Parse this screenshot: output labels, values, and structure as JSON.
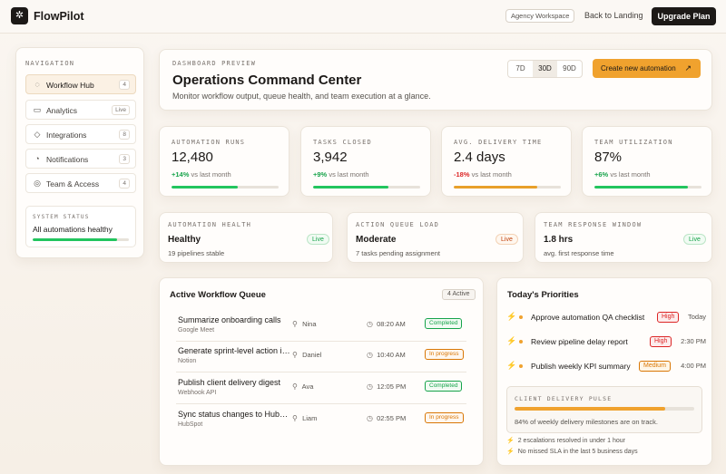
{
  "app": {
    "logo_glyph": "✲",
    "name": "FlowPilot",
    "workspace": "Agency Workspace",
    "back_label": "Back to Landing",
    "upgrade_label": "Upgrade Plan"
  },
  "sidebar": {
    "title": "NAVIGATION",
    "items": [
      {
        "label": "Workflow Hub",
        "badge": "4",
        "icon": "◌",
        "active": true
      },
      {
        "label": "Analytics",
        "badge": "Live",
        "icon": "▭"
      },
      {
        "label": "Integrations",
        "badge": "8",
        "icon": "◇"
      },
      {
        "label": "Notifications",
        "badge": "3",
        "icon": "◔"
      },
      {
        "label": "Team & Access",
        "badge": "4",
        "icon": "◎"
      }
    ],
    "status": {
      "title": "SYSTEM STATUS",
      "text": "All automations healthy",
      "progress": 0.88,
      "color": "#22c55e"
    }
  },
  "header": {
    "eyebrow": "DASHBOARD PREVIEW",
    "title": "Operations Command Center",
    "subtitle": "Monitor workflow output, queue health, and team execution at a glance.",
    "ranges": [
      "7D",
      "30D",
      "90D"
    ],
    "selected_range": "30D",
    "create_label": "Create new automation",
    "create_arrow": "↗",
    "accent": "#f0a22e"
  },
  "metrics": [
    {
      "label": "AUTOMATION RUNS",
      "value": "12,480",
      "delta": "+14%",
      "delta_note": "vs last month",
      "trend": "pos",
      "progress": 0.62,
      "color": "#22c55e"
    },
    {
      "label": "TASKS CLOSED",
      "value": "3,942",
      "delta": "+9%",
      "delta_note": "vs last month",
      "trend": "pos",
      "progress": 0.7,
      "color": "#22c55e"
    },
    {
      "label": "AVG. DELIVERY TIME",
      "value": "2.4 days",
      "delta": "-18%",
      "delta_note": "vs last month",
      "trend": "neg",
      "progress": 0.78,
      "color": "#e8a02a"
    },
    {
      "label": "TEAM UTILIZATION",
      "value": "87%",
      "delta": "+6%",
      "delta_note": "vs last month",
      "trend": "pos",
      "progress": 0.87,
      "color": "#22c55e"
    }
  ],
  "health": [
    {
      "label": "AUTOMATION HEALTH",
      "value": "Healthy",
      "desc": "19 pipelines stable",
      "pill": "Live",
      "pill_type": "live"
    },
    {
      "label": "ACTION QUEUE LOAD",
      "value": "Moderate",
      "desc": "7 tasks pending assignment",
      "pill": "Live",
      "pill_type": "amber"
    },
    {
      "label": "TEAM RESPONSE WINDOW",
      "value": "1.8 hrs",
      "desc": "avg. first response time",
      "pill": "Live",
      "pill_type": "live"
    }
  ],
  "queue": {
    "title": "Active Workflow Queue",
    "count": "4 Active",
    "user_icon": "⚲",
    "time_icon": "◷",
    "rows": [
      {
        "task": "Summarize onboarding calls",
        "source": "Google Meet",
        "user": "Nina",
        "time": "08:20 AM",
        "status": "Completed",
        "state": "done"
      },
      {
        "task": "Generate sprint-level action items",
        "source": "Notion",
        "user": "Daniel",
        "time": "10:40 AM",
        "status": "In progress",
        "state": "prog"
      },
      {
        "task": "Publish client delivery digest",
        "source": "Webhook API",
        "user": "Ava",
        "time": "12:05 PM",
        "status": "Completed",
        "state": "done"
      },
      {
        "task": "Sync status changes to HubSpot",
        "source": "HubSpot",
        "user": "Liam",
        "time": "02:55 PM",
        "status": "In progress",
        "state": "prog"
      }
    ]
  },
  "priorities": {
    "title": "Today's Priorities",
    "bolt": "⚡",
    "items": [
      {
        "label": "Approve automation QA checklist",
        "tag": "High",
        "tag_type": "high",
        "time": "Today"
      },
      {
        "label": "Review pipeline delay report",
        "tag": "High",
        "tag_type": "high",
        "time": "2:30 PM"
      },
      {
        "label": "Publish weekly KPI summary",
        "tag": "Medium",
        "tag_type": "med",
        "time": "4:00 PM"
      }
    ],
    "pulse": {
      "title": "CLIENT DELIVERY PULSE",
      "progress": 0.84,
      "note": "84% of weekly delivery milestones are on track.",
      "color": "#f0a22e"
    },
    "footer": [
      "2 escalations resolved in under 1 hour",
      "No missed SLA in the last 5 business days"
    ]
  }
}
